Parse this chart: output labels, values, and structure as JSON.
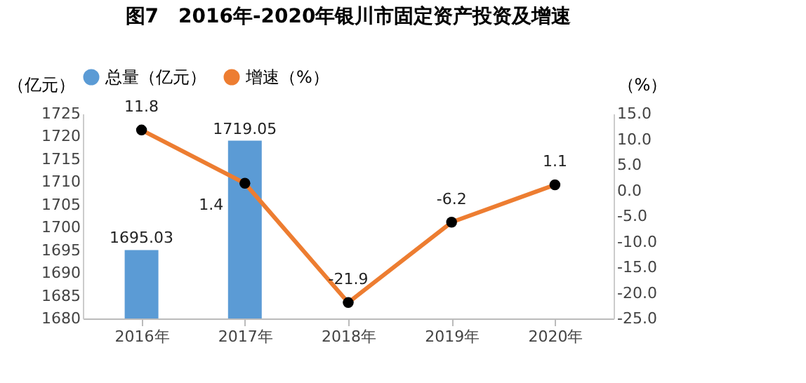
{
  "chart_data": {
    "type": "bar",
    "title": "图7　2016年-2020年银川市固定资产投资及增速",
    "categories": [
      "2016年",
      "2017年",
      "2018年",
      "2019年",
      "2020年"
    ],
    "ylabel": "（亿元）",
    "y2label": "（%）",
    "series": [
      {
        "name": "总量（亿元）",
        "color": "#5b9bd5",
        "values": [
          1695.03,
          1719.05,
          null,
          null,
          null
        ]
      },
      {
        "name": "增速（%）",
        "type": "line",
        "axis": "y2",
        "color": "#ed7d31",
        "values": [
          11.8,
          1.4,
          -21.9,
          -6.2,
          1.1
        ]
      }
    ],
    "ylim": [
      1680,
      1725
    ],
    "yticks": [
      1680,
      1685,
      1690,
      1695,
      1700,
      1705,
      1710,
      1715,
      1720,
      1725
    ],
    "y2lim": [
      -25,
      15
    ],
    "y2ticks": [
      {
        "value": -25,
        "label": "-25.0"
      },
      {
        "value": -20,
        "label": "-20.0"
      },
      {
        "value": -15,
        "label": "-15.0"
      },
      {
        "value": -10,
        "label": "-10.0"
      },
      {
        "value": -5,
        "label": "-5.0"
      },
      {
        "value": 0,
        "label": "0.0"
      },
      {
        "value": 5,
        "label": "5.0"
      },
      {
        "value": 10,
        "label": "10.0"
      },
      {
        "value": 15,
        "label": "15.0"
      }
    ],
    "data_labels": true,
    "legend": "top",
    "grid": false,
    "marker": "circle",
    "line_style": "solid"
  }
}
